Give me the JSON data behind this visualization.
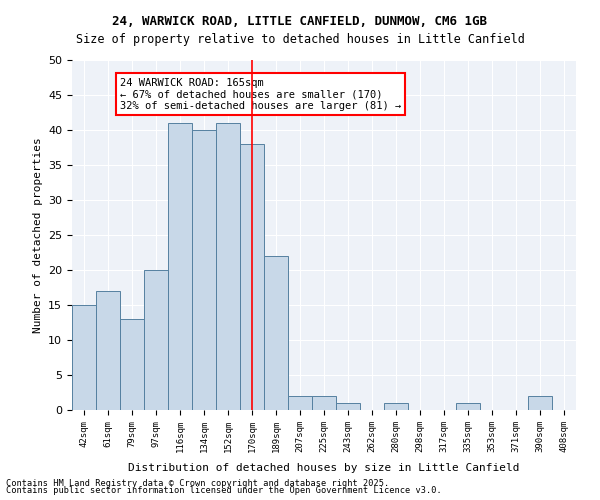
{
  "title1": "24, WARWICK ROAD, LITTLE CANFIELD, DUNMOW, CM6 1GB",
  "title2": "Size of property relative to detached houses in Little Canfield",
  "xlabel": "Distribution of detached houses by size in Little Canfield",
  "ylabel": "Number of detached properties",
  "categories": [
    "42sqm",
    "61sqm",
    "79sqm",
    "97sqm",
    "116sqm",
    "134sqm",
    "152sqm",
    "170sqm",
    "189sqm",
    "207sqm",
    "225sqm",
    "243sqm",
    "262sqm",
    "280sqm",
    "298sqm",
    "317sqm",
    "335sqm",
    "353sqm",
    "371sqm",
    "390sqm",
    "408sqm"
  ],
  "values": [
    15,
    17,
    13,
    20,
    41,
    40,
    41,
    38,
    22,
    2,
    2,
    1,
    0,
    1,
    0,
    0,
    1,
    0,
    0,
    2,
    0
  ],
  "bar_color": "#c8d8e8",
  "bar_edge_color": "#5580a0",
  "vline_x": 7,
  "vline_color": "red",
  "annotation_text": "24 WARWICK ROAD: 165sqm\n← 67% of detached houses are smaller (170)\n32% of semi-detached houses are larger (81) →",
  "annotation_box_color": "white",
  "annotation_box_edge_color": "red",
  "ylim": [
    0,
    50
  ],
  "yticks": [
    0,
    5,
    10,
    15,
    20,
    25,
    30,
    35,
    40,
    45,
    50
  ],
  "bg_color": "#eef2f8",
  "footer1": "Contains HM Land Registry data © Crown copyright and database right 2025.",
  "footer2": "Contains public sector information licensed under the Open Government Licence v3.0."
}
